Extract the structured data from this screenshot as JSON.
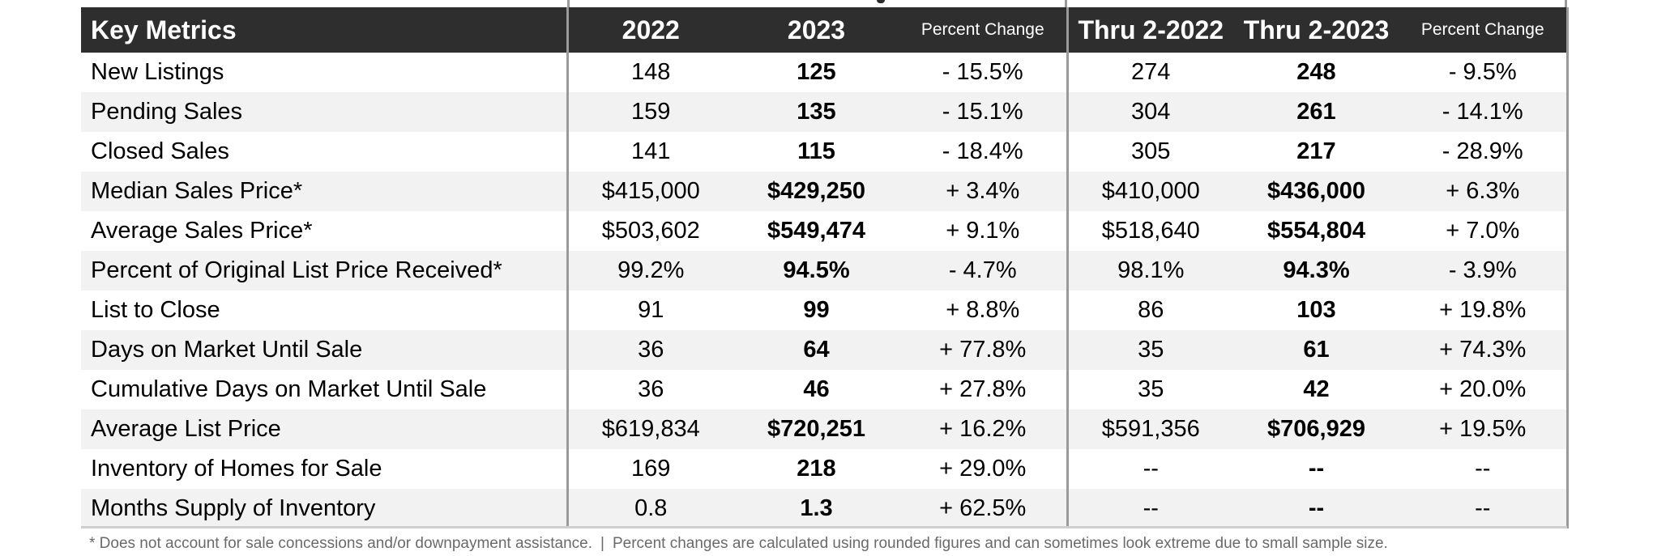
{
  "table": {
    "headers": {
      "label": "Key Metrics",
      "y2022": "2022",
      "y2023": "2023",
      "pct_change": "Percent Change",
      "ytd2022": "Thru 2-2022",
      "ytd2023": "Thru 2-2023",
      "pct_change_ytd": "Percent Change"
    },
    "rows": [
      {
        "metric": "New Listings",
        "v2022": "148",
        "v2023": "125",
        "change": "- 15.5%",
        "ytd2022": "274",
        "ytd2023": "248",
        "ytd_change": "- 9.5%"
      },
      {
        "metric": "Pending Sales",
        "v2022": "159",
        "v2023": "135",
        "change": "- 15.1%",
        "ytd2022": "304",
        "ytd2023": "261",
        "ytd_change": "- 14.1%"
      },
      {
        "metric": "Closed Sales",
        "v2022": "141",
        "v2023": "115",
        "change": "- 18.4%",
        "ytd2022": "305",
        "ytd2023": "217",
        "ytd_change": "- 28.9%"
      },
      {
        "metric": "Median Sales Price*",
        "v2022": "$415,000",
        "v2023": "$429,250",
        "change": "+ 3.4%",
        "ytd2022": "$410,000",
        "ytd2023": "$436,000",
        "ytd_change": "+ 6.3%"
      },
      {
        "metric": "Average Sales Price*",
        "v2022": "$503,602",
        "v2023": "$549,474",
        "change": "+ 9.1%",
        "ytd2022": "$518,640",
        "ytd2023": "$554,804",
        "ytd_change": "+ 7.0%"
      },
      {
        "metric": "Percent of Original List Price Received*",
        "v2022": "99.2%",
        "v2023": "94.5%",
        "change": "- 4.7%",
        "ytd2022": "98.1%",
        "ytd2023": "94.3%",
        "ytd_change": "- 3.9%"
      },
      {
        "metric": "List to Close",
        "v2022": "91",
        "v2023": "99",
        "change": "+ 8.8%",
        "ytd2022": "86",
        "ytd2023": "103",
        "ytd_change": "+ 19.8%"
      },
      {
        "metric": "Days on Market Until Sale",
        "v2022": "36",
        "v2023": "64",
        "change": "+ 77.8%",
        "ytd2022": "35",
        "ytd2023": "61",
        "ytd_change": "+ 74.3%"
      },
      {
        "metric": "Cumulative Days on Market Until Sale",
        "v2022": "36",
        "v2023": "46",
        "change": "+ 27.8%",
        "ytd2022": "35",
        "ytd2023": "42",
        "ytd_change": "+ 20.0%"
      },
      {
        "metric": "Average List Price",
        "v2022": "$619,834",
        "v2023": "$720,251",
        "change": "+ 16.2%",
        "ytd2022": "$591,356",
        "ytd2023": "$706,929",
        "ytd_change": "+ 19.5%"
      },
      {
        "metric": "Inventory of Homes for Sale",
        "v2022": "169",
        "v2023": "218",
        "change": "+ 29.0%",
        "ytd2022": "--",
        "ytd2023": "--",
        "ytd_change": "--"
      },
      {
        "metric": "Months Supply of Inventory",
        "v2022": "0.8",
        "v2023": "1.3",
        "change": "+ 62.5%",
        "ytd2022": "--",
        "ytd2023": "--",
        "ytd_change": "--"
      }
    ]
  },
  "footnote": {
    "asterisk_note": "* Does not account for sale concessions and/or downpayment assistance.",
    "separator": "|",
    "rounding_note": "Percent changes are calculated using rounded figures and can sometimes look extreme due to small sample size."
  },
  "colors": {
    "header_bg": "#2e2e2e",
    "header_text": "#ffffff",
    "stripe_bg": "#f2f2f2",
    "divider": "#9a9a9a",
    "footnote_text": "#6a6a6a"
  }
}
